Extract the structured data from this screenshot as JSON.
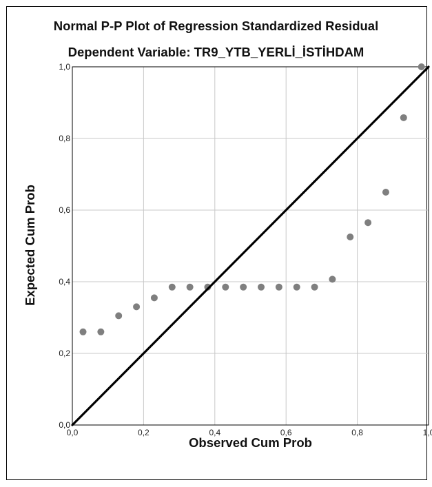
{
  "chart_data": {
    "type": "scatter",
    "title": "Normal P-P Plot of Regression Standardized Residual",
    "subtitle": "Dependent Variable: TR9_YTB_YERLİ_İSTİHDAM",
    "xlabel": "Observed Cum Prob",
    "ylabel": "Expected Cum Prob",
    "xlim": [
      0,
      1
    ],
    "ylim": [
      0,
      1
    ],
    "x_ticks": [
      "0,0",
      "0,2",
      "0,4",
      "0,6",
      "0,8",
      "1,0"
    ],
    "y_ticks": [
      "0,0",
      "0,2",
      "0,4",
      "0,6",
      "0,8",
      "1,0"
    ],
    "grid": true,
    "reference_line": {
      "from": [
        0,
        0
      ],
      "to": [
        1,
        1
      ]
    },
    "points": [
      {
        "x": 0.03,
        "y": 0.26
      },
      {
        "x": 0.08,
        "y": 0.26
      },
      {
        "x": 0.13,
        "y": 0.305
      },
      {
        "x": 0.18,
        "y": 0.33
      },
      {
        "x": 0.23,
        "y": 0.355
      },
      {
        "x": 0.28,
        "y": 0.385
      },
      {
        "x": 0.33,
        "y": 0.385
      },
      {
        "x": 0.38,
        "y": 0.385
      },
      {
        "x": 0.43,
        "y": 0.385
      },
      {
        "x": 0.48,
        "y": 0.385
      },
      {
        "x": 0.53,
        "y": 0.385
      },
      {
        "x": 0.58,
        "y": 0.385
      },
      {
        "x": 0.63,
        "y": 0.385
      },
      {
        "x": 0.68,
        "y": 0.385
      },
      {
        "x": 0.73,
        "y": 0.407
      },
      {
        "x": 0.78,
        "y": 0.525
      },
      {
        "x": 0.83,
        "y": 0.565
      },
      {
        "x": 0.88,
        "y": 0.65
      },
      {
        "x": 0.93,
        "y": 0.858
      },
      {
        "x": 0.98,
        "y": 1.0
      }
    ],
    "colors": {
      "points": "#7f7f7f",
      "line": "#000000",
      "grid": "#c8c8c8"
    }
  }
}
